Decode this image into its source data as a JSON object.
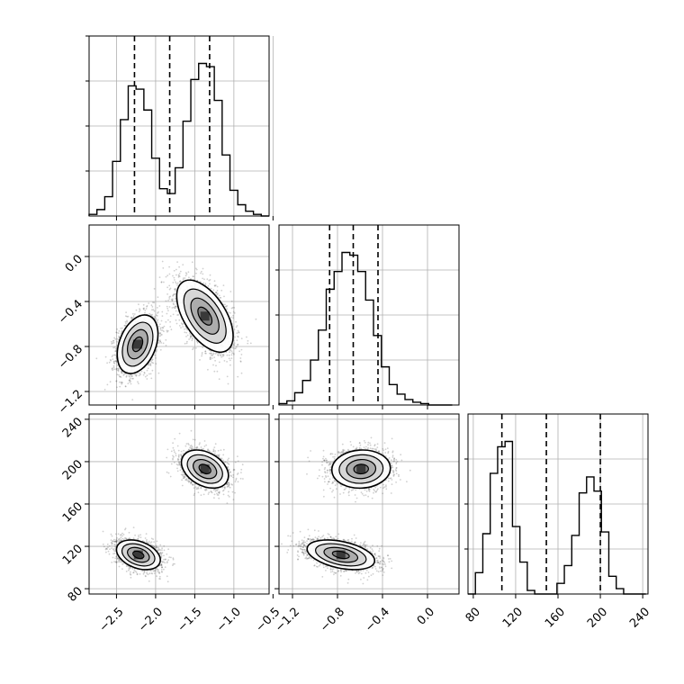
{
  "chart_data": {
    "type": "corner",
    "title": "",
    "parameters": [
      {
        "name": "",
        "range": [
          -2.85,
          -0.55
        ],
        "ticks": [
          -2.5,
          -2.0,
          -1.5,
          -1.0,
          -0.5
        ],
        "tick_labels": [
          "−2.5",
          "−2.0",
          "−1.5",
          "−1.0",
          "−0.5"
        ]
      },
      {
        "name": "",
        "range": [
          -1.32,
          0.28
        ],
        "ticks": [
          -1.2,
          -0.8,
          -0.4,
          0.0
        ],
        "tick_labels": [
          "−1.2",
          "−0.8",
          "−0.4",
          "0.0"
        ]
      },
      {
        "name": "",
        "range": [
          75,
          245
        ],
        "ticks": [
          80,
          120,
          160,
          200,
          240
        ],
        "tick_labels": [
          "80",
          "120",
          "160",
          "200",
          "240"
        ]
      }
    ],
    "histograms": [
      {
        "param": 0,
        "bin_edges": [
          -2.85,
          -2.75,
          -2.65,
          -2.55,
          -2.45,
          -2.35,
          -2.25,
          -2.15,
          -2.05,
          -1.95,
          -1.85,
          -1.75,
          -1.65,
          -1.55,
          -1.45,
          -1.35,
          -1.25,
          -1.15,
          -1.05,
          -0.95,
          -0.85,
          -0.75,
          -0.65,
          -0.55
        ],
        "counts": [
          1,
          4,
          12,
          34,
          60,
          81,
          79,
          66,
          36,
          17,
          14,
          30,
          59,
          85,
          95,
          93,
          72,
          38,
          16,
          7,
          3,
          1,
          0
        ],
        "quantiles": [
          -2.27,
          -1.82,
          -1.31
        ]
      },
      {
        "param": 1,
        "bin_edges": [
          -1.32,
          -1.25,
          -1.18,
          -1.11,
          -1.04,
          -0.97,
          -0.9,
          -0.83,
          -0.76,
          -0.69,
          -0.62,
          -0.55,
          -0.48,
          -0.41,
          -0.34,
          -0.27,
          -0.2,
          -0.13,
          -0.06,
          0.01,
          0.08,
          0.15,
          0.22
        ],
        "counts": [
          1,
          3,
          9,
          18,
          33,
          55,
          85,
          98,
          112,
          110,
          98,
          77,
          51,
          28,
          15,
          8,
          4,
          2,
          1,
          0,
          0,
          0
        ],
        "quantiles": [
          -0.87,
          -0.66,
          -0.44
        ]
      },
      {
        "param": 2,
        "bin_edges": [
          75,
          82,
          89,
          96,
          103,
          110,
          117,
          124,
          131,
          138,
          145,
          152,
          159,
          166,
          173,
          180,
          187,
          194,
          201,
          208,
          215,
          222,
          229,
          236,
          243
        ],
        "counts": [
          0,
          12,
          34,
          68,
          83,
          86,
          38,
          18,
          2,
          0,
          0,
          0,
          6,
          16,
          33,
          57,
          66,
          58,
          35,
          10,
          3,
          0,
          0,
          0
        ],
        "quantiles": [
          107,
          149,
          200
        ]
      }
    ],
    "scatter_panels": [
      {
        "x_param": 0,
        "y_param": 1,
        "modes": [
          {
            "center": [
              -2.23,
              -0.78
            ],
            "sd": [
              0.13,
              0.13
            ],
            "corr": 0.35,
            "n": 2200
          },
          {
            "center": [
              -1.37,
              -0.53
            ],
            "sd": [
              0.18,
              0.16
            ],
            "corr": -0.55,
            "n": 2200
          }
        ]
      },
      {
        "x_param": 0,
        "y_param": 2,
        "modes": [
          {
            "center": [
              -2.22,
              112
            ],
            "sd": [
              0.14,
              7
            ],
            "corr": -0.35,
            "n": 2200
          },
          {
            "center": [
              -1.37,
              193
            ],
            "sd": [
              0.15,
              9
            ],
            "corr": -0.35,
            "n": 2200
          }
        ]
      },
      {
        "x_param": 1,
        "y_param": 2,
        "modes": [
          {
            "center": [
              -0.77,
              112
            ],
            "sd": [
              0.15,
              7
            ],
            "corr": -0.4,
            "n": 2200
          },
          {
            "center": [
              -0.59,
              193
            ],
            "sd": [
              0.13,
              9
            ],
            "corr": 0.05,
            "n": 2200
          }
        ]
      }
    ],
    "contour_levels_sigma": [
      0.5,
      1.0,
      1.5,
      2.0
    ],
    "colors": {
      "line": "#000000",
      "grid": "#b0b0b0",
      "points": "#555555",
      "density": "#000000"
    },
    "grid": true,
    "legend": "none"
  }
}
